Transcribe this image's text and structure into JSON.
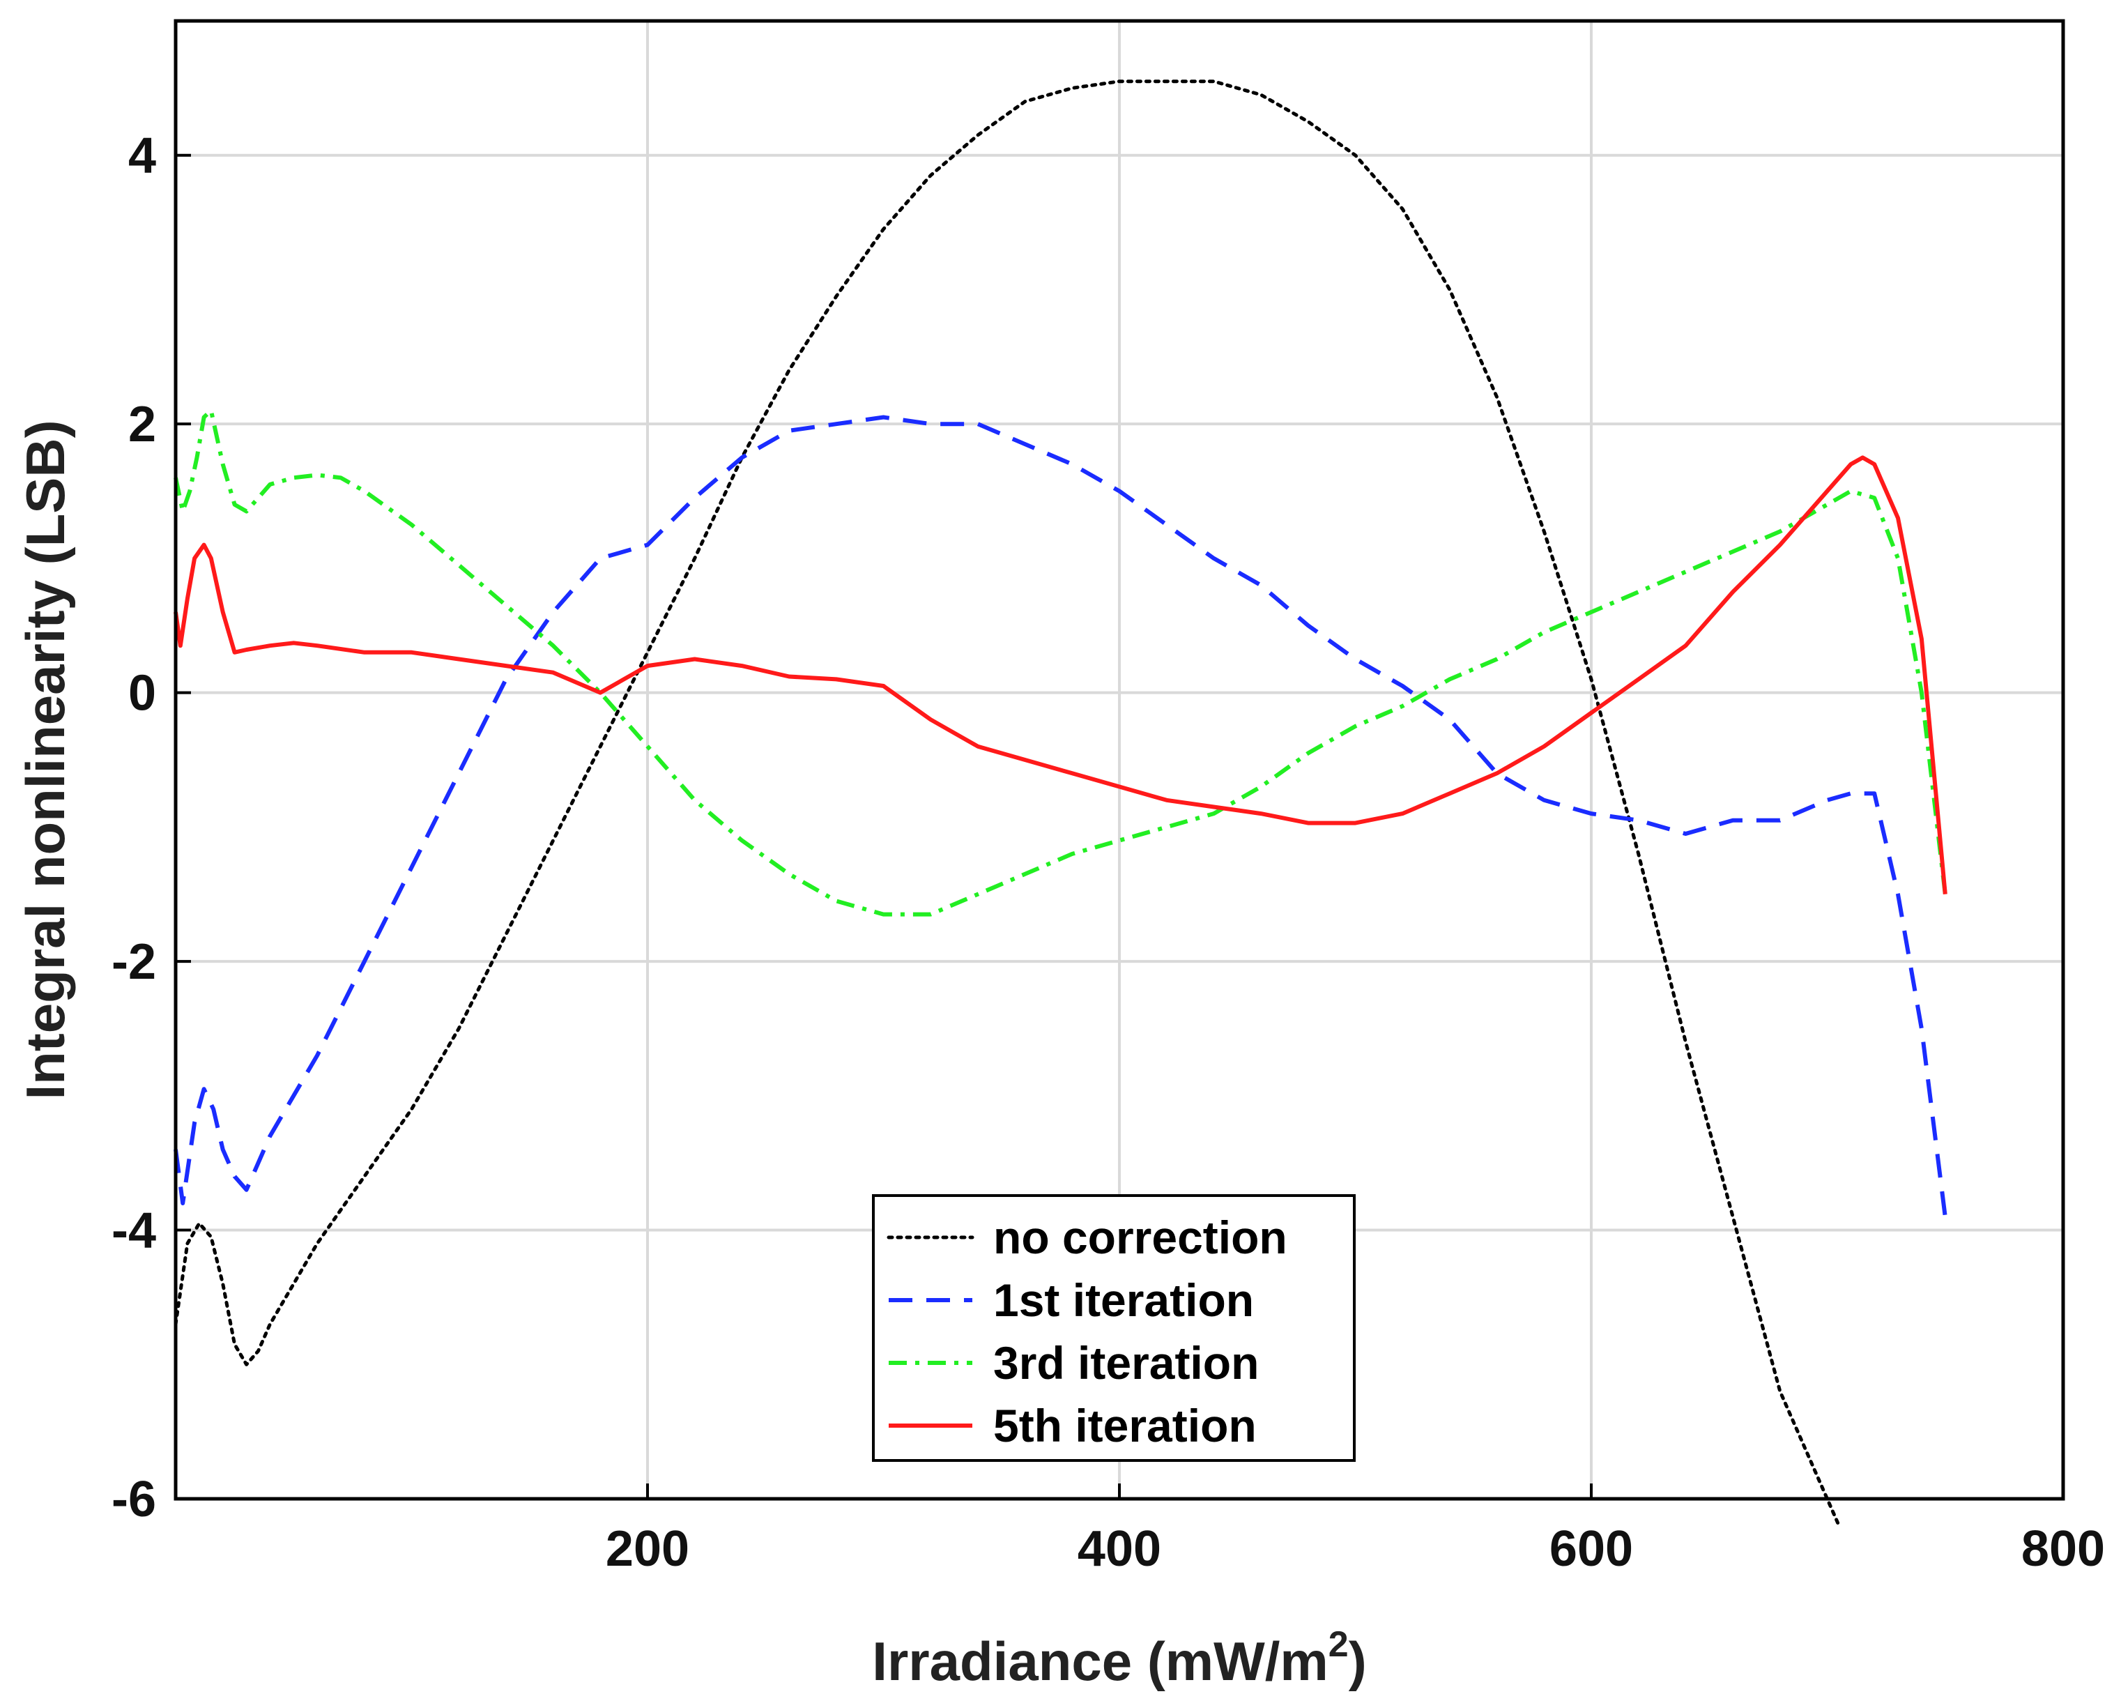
{
  "chart_data": {
    "type": "line",
    "title": "",
    "xlabel": "Irradiance (mW/m",
    "xlabel_sup": "2",
    "xlabel_close": ")",
    "ylabel": "Integral nonlinearity (LSB)",
    "xlim": [
      0,
      800
    ],
    "ylim": [
      -6,
      5
    ],
    "xticks": [
      200,
      400,
      600,
      800
    ],
    "xtick_labels": [
      "200",
      "400",
      "600",
      "800"
    ],
    "yticks": [
      -6,
      -4,
      -2,
      0,
      2,
      4
    ],
    "ytick_labels": [
      "-6",
      "-4",
      "-2",
      "0",
      "2",
      "4"
    ],
    "grid": true,
    "legend_position": "bottom-center",
    "series": [
      {
        "name": "no correction",
        "color": "#000000",
        "style": "dotted",
        "x": [
          0,
          5,
          10,
          15,
          20,
          25,
          30,
          35,
          40,
          50,
          60,
          70,
          80,
          100,
          120,
          140,
          160,
          180,
          200,
          220,
          240,
          260,
          280,
          300,
          320,
          340,
          360,
          380,
          400,
          420,
          440,
          460,
          480,
          500,
          520,
          540,
          560,
          580,
          600,
          620,
          640,
          660,
          680,
          700,
          705
        ],
        "y": [
          -4.7,
          -4.1,
          -3.95,
          -4.05,
          -4.4,
          -4.85,
          -5.0,
          -4.9,
          -4.7,
          -4.4,
          -4.1,
          -3.85,
          -3.6,
          -3.1,
          -2.5,
          -1.8,
          -1.1,
          -0.4,
          0.3,
          1.0,
          1.75,
          2.4,
          2.95,
          3.45,
          3.85,
          4.15,
          4.4,
          4.5,
          4.55,
          4.55,
          4.55,
          4.45,
          4.25,
          4.0,
          3.6,
          3.0,
          2.2,
          1.2,
          0.1,
          -1.2,
          -2.6,
          -3.9,
          -5.2,
          -6.0,
          -6.2
        ]
      },
      {
        "name": "1st iteration",
        "color": "#1a2cff",
        "style": "dashed",
        "x": [
          0,
          3,
          8,
          12,
          16,
          20,
          25,
          30,
          35,
          40,
          60,
          80,
          100,
          120,
          140,
          160,
          180,
          200,
          220,
          240,
          260,
          280,
          300,
          320,
          340,
          360,
          380,
          400,
          420,
          440,
          460,
          480,
          500,
          520,
          540,
          560,
          580,
          600,
          620,
          640,
          660,
          680,
          700,
          710,
          720,
          730,
          740,
          750
        ],
        "y": [
          -3.4,
          -3.8,
          -3.2,
          -2.95,
          -3.1,
          -3.4,
          -3.6,
          -3.7,
          -3.5,
          -3.3,
          -2.7,
          -2.0,
          -1.3,
          -0.6,
          0.1,
          0.6,
          1.0,
          1.1,
          1.45,
          1.75,
          1.95,
          2.0,
          2.05,
          2.0,
          2.0,
          1.85,
          1.7,
          1.5,
          1.25,
          1.0,
          0.8,
          0.5,
          0.25,
          0.05,
          -0.2,
          -0.6,
          -0.8,
          -0.9,
          -0.95,
          -1.05,
          -0.95,
          -0.95,
          -0.8,
          -0.75,
          -0.75,
          -1.5,
          -2.5,
          -3.9
        ]
      },
      {
        "name": "3rd iteration",
        "color": "#22ee22",
        "style": "dashdot",
        "x": [
          0,
          3,
          6,
          9,
          12,
          15,
          20,
          25,
          30,
          40,
          50,
          60,
          70,
          80,
          100,
          120,
          140,
          160,
          180,
          200,
          220,
          240,
          260,
          280,
          300,
          320,
          340,
          360,
          380,
          400,
          420,
          440,
          460,
          480,
          500,
          520,
          540,
          560,
          580,
          600,
          620,
          640,
          660,
          680,
          700,
          710,
          720,
          730,
          740,
          750
        ],
        "y": [
          1.6,
          1.35,
          1.5,
          1.75,
          2.05,
          2.1,
          1.7,
          1.4,
          1.35,
          1.55,
          1.6,
          1.62,
          1.6,
          1.5,
          1.25,
          0.95,
          0.65,
          0.35,
          0.0,
          -0.4,
          -0.8,
          -1.1,
          -1.35,
          -1.55,
          -1.65,
          -1.65,
          -1.5,
          -1.35,
          -1.2,
          -1.1,
          -1.0,
          -0.9,
          -0.7,
          -0.45,
          -0.25,
          -0.1,
          0.1,
          0.25,
          0.45,
          0.6,
          0.75,
          0.9,
          1.05,
          1.2,
          1.4,
          1.5,
          1.45,
          1.0,
          0.0,
          -1.5
        ]
      },
      {
        "name": "5th iteration",
        "color": "#ff1a1a",
        "style": "solid",
        "x": [
          0,
          2,
          5,
          8,
          12,
          15,
          20,
          25,
          30,
          40,
          50,
          60,
          80,
          100,
          120,
          140,
          160,
          180,
          200,
          220,
          240,
          260,
          280,
          300,
          320,
          340,
          360,
          380,
          400,
          420,
          440,
          460,
          480,
          500,
          520,
          540,
          560,
          580,
          600,
          620,
          640,
          660,
          680,
          700,
          710,
          715,
          720,
          730,
          740,
          750
        ],
        "y": [
          0.6,
          0.35,
          0.7,
          1.0,
          1.1,
          1.0,
          0.6,
          0.3,
          0.32,
          0.35,
          0.37,
          0.35,
          0.3,
          0.3,
          0.25,
          0.2,
          0.15,
          0.0,
          0.2,
          0.25,
          0.2,
          0.12,
          0.1,
          0.05,
          -0.2,
          -0.4,
          -0.5,
          -0.6,
          -0.7,
          -0.8,
          -0.85,
          -0.9,
          -0.97,
          -0.97,
          -0.9,
          -0.75,
          -0.6,
          -0.4,
          -0.15,
          0.1,
          0.35,
          0.75,
          1.1,
          1.5,
          1.7,
          1.75,
          1.7,
          1.3,
          0.4,
          -1.5
        ]
      }
    ]
  }
}
